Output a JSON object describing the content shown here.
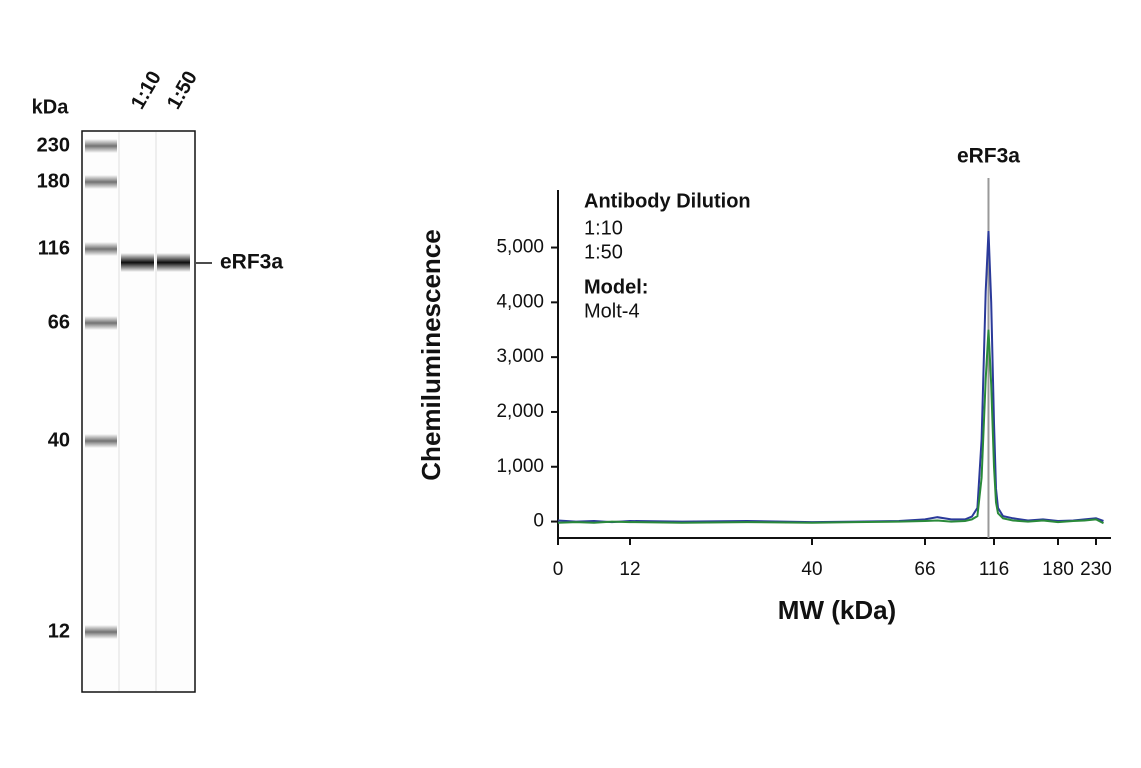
{
  "blot": {
    "unit_label": "kDa",
    "markers": [
      230,
      180,
      116,
      66,
      40,
      12
    ],
    "lanes": [
      "1:10",
      "1:50"
    ],
    "band_label": "eRF3a"
  },
  "chart_data": {
    "type": "line",
    "x_label": "MW (kDa)",
    "y_label": "Chemiluminescence",
    "legend_title": "Antibody Dilution",
    "model_label": "Model:",
    "model": "Molt-4",
    "peak_marker": {
      "label": "eRF3a",
      "x": 112
    },
    "x": [
      0,
      3,
      6,
      9,
      12,
      20,
      30,
      40,
      50,
      60,
      66,
      75,
      85,
      95,
      100,
      104,
      107,
      110,
      112,
      114,
      116,
      118,
      120,
      125,
      135,
      150,
      165,
      180,
      200,
      215,
      230,
      240
    ],
    "series": [
      {
        "name": "1:10",
        "color": "#2b3a9a",
        "values": [
          20,
          0,
          10,
          -10,
          10,
          0,
          10,
          -10,
          0,
          10,
          40,
          80,
          40,
          40,
          90,
          250,
          1500,
          4200,
          5300,
          4000,
          1800,
          600,
          250,
          100,
          60,
          20,
          40,
          10,
          20,
          40,
          60,
          10
        ]
      },
      {
        "name": "1:50",
        "color": "#2a8a3a",
        "values": [
          -20,
          -10,
          -20,
          0,
          -10,
          -20,
          -10,
          -20,
          -10,
          0,
          10,
          20,
          0,
          10,
          40,
          100,
          800,
          2600,
          3500,
          2500,
          1000,
          350,
          150,
          60,
          20,
          0,
          20,
          -10,
          10,
          20,
          40,
          -30
        ]
      }
    ],
    "xlim": [
      0,
      250
    ],
    "xticks": [
      0,
      12,
      40,
      66,
      116,
      180,
      230
    ],
    "ylim": [
      -300,
      6050
    ],
    "yticks": [
      0,
      {
        "value": 1000,
        "label": "1,000"
      },
      {
        "value": 2000,
        "label": "2,000"
      },
      {
        "value": 3000,
        "label": "3,000"
      },
      {
        "value": 4000,
        "label": "4,000"
      },
      {
        "value": 5000,
        "label": "5,000"
      }
    ]
  }
}
